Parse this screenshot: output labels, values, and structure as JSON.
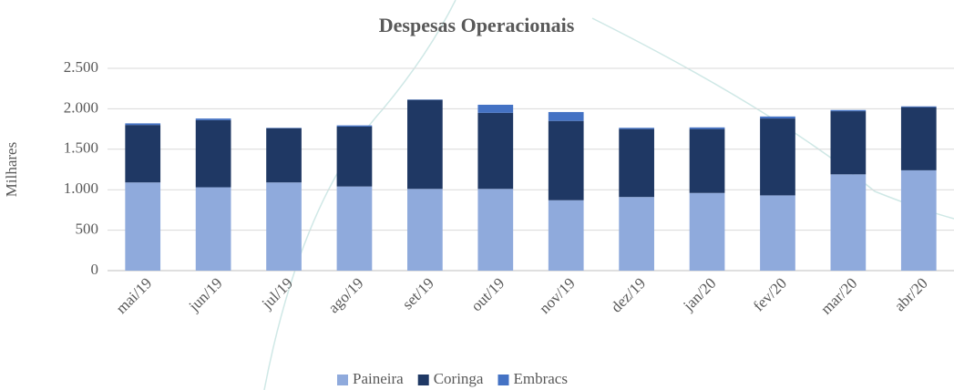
{
  "chart_data": {
    "type": "stacked_bar",
    "title": "Despesas Operacionais",
    "y_label": "Milhares",
    "categories": [
      "mai/19",
      "jun/19",
      "jul/19",
      "ago/19",
      "set/19",
      "out/19",
      "nov/19",
      "dez/19",
      "jan/20",
      "fev/20",
      "mar/20",
      "abr/20"
    ],
    "series": [
      {
        "name": "Paineira",
        "color": "#8faadc",
        "values": [
          1090,
          1030,
          1090,
          1040,
          1010,
          1010,
          870,
          910,
          960,
          930,
          1190,
          1240
        ]
      },
      {
        "name": "Coringa",
        "color": "#1f3864",
        "values": [
          710,
          830,
          670,
          740,
          1100,
          940,
          980,
          840,
          790,
          950,
          780,
          780
        ]
      },
      {
        "name": "Embracs",
        "color": "#4472c4",
        "values": [
          20,
          20,
          5,
          15,
          5,
          100,
          110,
          15,
          20,
          25,
          15,
          10
        ]
      }
    ],
    "ylim": [
      0,
      2500
    ],
    "yticks": [
      0,
      500,
      {
        "value": 1000,
        "label": "1.000"
      },
      {
        "value": 1500,
        "label": "1.500"
      },
      {
        "value": 2000,
        "label": "2.000"
      },
      {
        "value": 2500,
        "label": "2.500"
      }
    ],
    "grid": true,
    "legend": "bottom"
  }
}
